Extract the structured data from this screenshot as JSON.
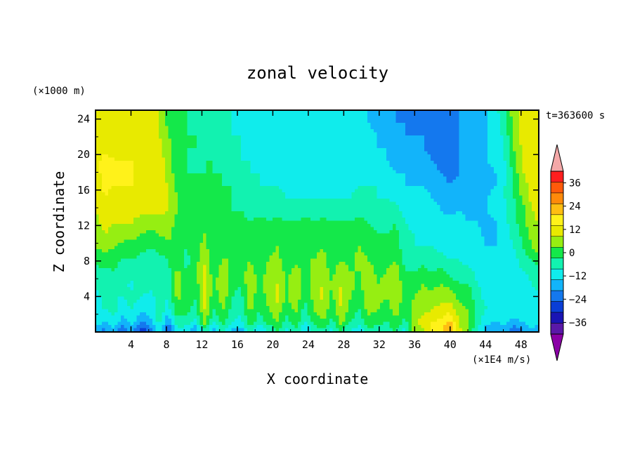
{
  "chart_data": {
    "type": "heatmap",
    "title": "zonal velocity",
    "xlabel": "X coordinate",
    "ylabel": "Z coordinate",
    "y_unit": "(×1000 m)",
    "x_unit": "(×1E4 m/s)",
    "time_label": "t=363600 s",
    "xlim": [
      0,
      50
    ],
    "ylim": [
      0,
      25
    ],
    "x_ticks": [
      4,
      8,
      12,
      16,
      20,
      24,
      28,
      32,
      36,
      40,
      44,
      48
    ],
    "y_ticks": [
      4,
      8,
      12,
      16,
      20,
      24
    ],
    "grid": false,
    "legend": "right",
    "colorbar": {
      "levels": [
        -42,
        -36,
        -30,
        -24,
        -18,
        -12,
        -6,
        0,
        6,
        12,
        18,
        24,
        30,
        36,
        42
      ],
      "tick_labels": [
        "36",
        "24",
        "12",
        "0",
        "−12",
        "−24",
        "−36"
      ],
      "tick_values": [
        36,
        24,
        12,
        0,
        -12,
        -24,
        -36
      ],
      "colors": [
        "#8a00a6",
        "#5a18a8",
        "#1a14b4",
        "#0a3ed6",
        "#1478ee",
        "#12b4fa",
        "#10ecec",
        "#12f2b0",
        "#14e84a",
        "#96ee12",
        "#e8ea00",
        "#fff21a",
        "#ffbe12",
        "#ff8a0a",
        "#ff5a0a",
        "#ff1e1e",
        "#f4a8a8"
      ]
    },
    "values": [
      [
        -14,
        -24,
        -14,
        -28,
        -16,
        -34,
        -26,
        -10,
        -32,
        -8,
        -10,
        -22,
        -6,
        -18,
        -4,
        -16,
        -20,
        -6,
        -14,
        -8,
        -2,
        -10,
        -4,
        -16,
        -8,
        -4,
        -10,
        -2,
        -8,
        -12,
        -4,
        -6,
        -8,
        -2,
        -10,
        6,
        10,
        18,
        24,
        36,
        14,
        4,
        -8,
        -18,
        -20,
        -16,
        -26,
        -20,
        -14,
        -26
      ],
      [
        -10,
        -12,
        -8,
        -16,
        -10,
        -18,
        -14,
        -4,
        -18,
        -2,
        -4,
        -8,
        8,
        -6,
        2,
        -6,
        -8,
        4,
        -4,
        2,
        6,
        -2,
        4,
        -6,
        2,
        6,
        -2,
        8,
        0,
        -4,
        4,
        2,
        0,
        6,
        -2,
        10,
        14,
        18,
        20,
        24,
        12,
        8,
        -4,
        -10,
        -12,
        -10,
        -14,
        -12,
        -8,
        -14
      ],
      [
        -8,
        -6,
        -4,
        -8,
        -6,
        -10,
        -10,
        -2,
        -8,
        4,
        2,
        -2,
        12,
        0,
        6,
        -2,
        -4,
        8,
        0,
        6,
        10,
        2,
        8,
        -2,
        6,
        10,
        2,
        12,
        4,
        0,
        8,
        6,
        4,
        8,
        2,
        8,
        10,
        12,
        14,
        16,
        8,
        6,
        -2,
        -6,
        -8,
        -6,
        -8,
        -8,
        -6,
        -8
      ],
      [
        -8,
        -4,
        -6,
        -6,
        -4,
        -6,
        -8,
        -4,
        -6,
        8,
        4,
        0,
        14,
        2,
        10,
        0,
        -2,
        10,
        2,
        8,
        14,
        4,
        12,
        0,
        8,
        14,
        4,
        14,
        6,
        2,
        10,
        8,
        6,
        10,
        4,
        6,
        8,
        8,
        10,
        10,
        4,
        4,
        -4,
        -8,
        -8,
        -6,
        -6,
        -8,
        -8,
        -6
      ],
      [
        -4,
        -6,
        -2,
        -4,
        -8,
        -2,
        -4,
        -2,
        -4,
        10,
        2,
        2,
        16,
        4,
        12,
        2,
        0,
        12,
        4,
        10,
        12,
        6,
        10,
        2,
        10,
        12,
        6,
        12,
        8,
        4,
        12,
        6,
        8,
        12,
        2,
        4,
        6,
        4,
        6,
        4,
        0,
        0,
        -6,
        -8,
        -10,
        -8,
        -6,
        -10,
        -6,
        -4
      ],
      [
        -2,
        -2,
        0,
        -4,
        -2,
        -4,
        -6,
        -4,
        -2,
        8,
        0,
        4,
        14,
        2,
        10,
        4,
        2,
        10,
        2,
        8,
        10,
        4,
        8,
        4,
        8,
        10,
        4,
        10,
        6,
        6,
        10,
        4,
        6,
        10,
        0,
        0,
        2,
        0,
        2,
        -2,
        -4,
        -4,
        -8,
        -10,
        -10,
        -8,
        -8,
        -6,
        -4,
        -2
      ],
      [
        2,
        4,
        2,
        0,
        0,
        -2,
        -4,
        -2,
        0,
        4,
        -2,
        4,
        10,
        0,
        6,
        6,
        4,
        6,
        0,
        6,
        8,
        2,
        4,
        6,
        6,
        8,
        2,
        6,
        4,
        8,
        6,
        2,
        4,
        6,
        -2,
        -4,
        -2,
        -4,
        -4,
        -6,
        -6,
        -8,
        -10,
        -10,
        -12,
        -10,
        -8,
        -4,
        0,
        4
      ],
      [
        6,
        8,
        6,
        4,
        4,
        2,
        0,
        2,
        4,
        2,
        0,
        4,
        8,
        2,
        4,
        6,
        4,
        4,
        2,
        4,
        6,
        2,
        2,
        6,
        4,
        6,
        2,
        4,
        4,
        6,
        4,
        2,
        2,
        4,
        -4,
        -6,
        -6,
        -6,
        -8,
        -8,
        -8,
        -10,
        -10,
        -12,
        -12,
        -10,
        -6,
        0,
        6,
        10
      ],
      [
        8,
        12,
        10,
        8,
        8,
        6,
        4,
        6,
        8,
        2,
        2,
        4,
        6,
        2,
        4,
        4,
        4,
        2,
        2,
        2,
        4,
        2,
        2,
        4,
        2,
        4,
        2,
        2,
        2,
        4,
        2,
        0,
        0,
        2,
        -4,
        -6,
        -8,
        -8,
        -10,
        -8,
        -10,
        -10,
        -10,
        -14,
        -12,
        -8,
        -4,
        2,
        8,
        12
      ],
      [
        10,
        14,
        12,
        12,
        12,
        10,
        8,
        10,
        10,
        4,
        2,
        2,
        4,
        2,
        2,
        2,
        2,
        0,
        2,
        0,
        2,
        0,
        0,
        2,
        0,
        2,
        0,
        0,
        0,
        2,
        0,
        -2,
        -2,
        0,
        -6,
        -8,
        -8,
        -10,
        -10,
        -10,
        -10,
        -12,
        -12,
        -14,
        -12,
        -8,
        -2,
        4,
        10,
        14
      ],
      [
        12,
        16,
        14,
        14,
        14,
        14,
        14,
        14,
        12,
        6,
        2,
        2,
        4,
        2,
        0,
        0,
        0,
        -2,
        -2,
        -2,
        -2,
        -4,
        -4,
        -2,
        -4,
        -2,
        -4,
        -4,
        -4,
        -2,
        -4,
        -4,
        -4,
        -4,
        -8,
        -10,
        -10,
        -10,
        -12,
        -14,
        -12,
        -14,
        -12,
        -12,
        -10,
        -8,
        -2,
        4,
        12,
        14
      ],
      [
        14,
        18,
        16,
        16,
        16,
        16,
        16,
        14,
        12,
        6,
        2,
        2,
        2,
        2,
        0,
        0,
        -2,
        -2,
        -4,
        -4,
        -4,
        -6,
        -6,
        -6,
        -6,
        -6,
        -6,
        -6,
        -6,
        -4,
        -4,
        -6,
        -6,
        -8,
        -10,
        -10,
        -10,
        -12,
        -14,
        -16,
        -14,
        -16,
        -14,
        -12,
        -10,
        -6,
        0,
        8,
        14,
        16
      ],
      [
        14,
        20,
        18,
        18,
        18,
        16,
        16,
        14,
        12,
        4,
        0,
        0,
        2,
        0,
        0,
        0,
        -4,
        -4,
        -6,
        -6,
        -6,
        -8,
        -8,
        -8,
        -8,
        -8,
        -8,
        -8,
        -8,
        -6,
        -6,
        -6,
        -8,
        -10,
        -12,
        -12,
        -12,
        -14,
        -16,
        -18,
        -16,
        -16,
        -14,
        -14,
        -12,
        -6,
        2,
        10,
        14,
        16
      ],
      [
        16,
        20,
        18,
        18,
        18,
        16,
        16,
        14,
        10,
        2,
        0,
        0,
        0,
        0,
        0,
        -2,
        -6,
        -6,
        -6,
        -8,
        -8,
        -10,
        -10,
        -10,
        -10,
        -10,
        -10,
        -10,
        -8,
        -8,
        -8,
        -8,
        -10,
        -12,
        -12,
        -14,
        -14,
        -16,
        -18,
        -20,
        -18,
        -16,
        -14,
        -14,
        -12,
        -8,
        2,
        12,
        14,
        16
      ],
      [
        16,
        20,
        18,
        18,
        18,
        16,
        16,
        14,
        10,
        2,
        0,
        -2,
        0,
        0,
        -2,
        -4,
        -6,
        -6,
        -8,
        -8,
        -10,
        -10,
        -10,
        -10,
        -10,
        -10,
        -10,
        -10,
        -10,
        -8,
        -8,
        -10,
        -12,
        -14,
        -14,
        -14,
        -16,
        -18,
        -20,
        -20,
        -18,
        -16,
        -14,
        -12,
        -10,
        -6,
        4,
        12,
        14,
        16
      ],
      [
        14,
        16,
        16,
        16,
        16,
        16,
        14,
        14,
        8,
        2,
        0,
        0,
        0,
        -2,
        -4,
        -6,
        -6,
        -8,
        -8,
        -8,
        -10,
        -10,
        -10,
        -10,
        -10,
        -10,
        -10,
        -10,
        -10,
        -10,
        -10,
        -12,
        -12,
        -14,
        -16,
        -16,
        -18,
        -20,
        -22,
        -20,
        -18,
        -16,
        -14,
        -12,
        -10,
        -6,
        6,
        14,
        14,
        14
      ],
      [
        14,
        14,
        16,
        16,
        16,
        14,
        14,
        12,
        6,
        2,
        0,
        0,
        -2,
        -4,
        -4,
        -6,
        -6,
        -8,
        -8,
        -10,
        -10,
        -10,
        -10,
        -10,
        -10,
        -10,
        -10,
        -10,
        -10,
        -10,
        -10,
        -12,
        -14,
        -16,
        -18,
        -18,
        -18,
        -20,
        -22,
        -20,
        -18,
        -16,
        -14,
        -12,
        -10,
        -4,
        8,
        14,
        14,
        14
      ],
      [
        14,
        14,
        16,
        16,
        16,
        14,
        14,
        12,
        4,
        2,
        0,
        -2,
        -2,
        -4,
        -6,
        -6,
        -8,
        -8,
        -10,
        -10,
        -10,
        -10,
        -10,
        -10,
        -10,
        -10,
        -10,
        -12,
        -12,
        -12,
        -12,
        -14,
        -16,
        -18,
        -18,
        -20,
        -20,
        -22,
        -22,
        -20,
        -18,
        -16,
        -14,
        -12,
        -10,
        -2,
        8,
        14,
        14,
        16
      ],
      [
        16,
        14,
        16,
        16,
        16,
        14,
        14,
        12,
        4,
        0,
        0,
        -2,
        -4,
        -4,
        -6,
        -6,
        -8,
        -8,
        -10,
        -10,
        -10,
        -10,
        -10,
        -10,
        -10,
        -10,
        -12,
        -12,
        -12,
        -12,
        -12,
        -14,
        -16,
        -18,
        -20,
        -20,
        -22,
        -22,
        -22,
        -20,
        -18,
        -16,
        -14,
        -12,
        -8,
        0,
        10,
        14,
        14,
        14
      ]
    ]
  }
}
